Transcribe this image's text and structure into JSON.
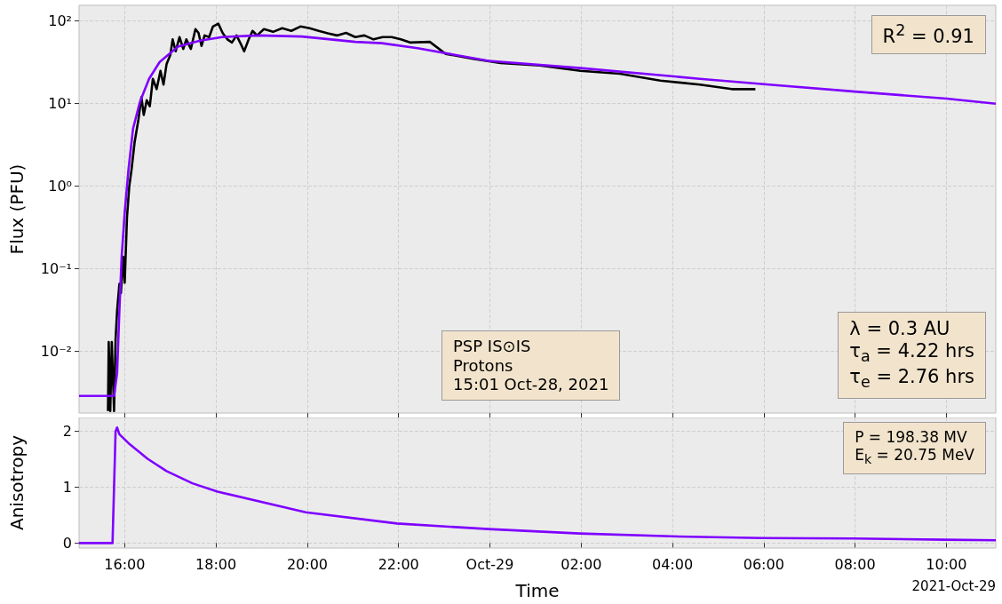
{
  "chart_data": [
    {
      "type": "line",
      "ylabel": "Flux (PFU)",
      "log": true,
      "grid": true,
      "tick_labels": "y",
      "xlim": [
        "2021-10-28T15:00",
        "2021-10-29T11:05"
      ],
      "xticks": [
        {
          "value": "2021-10-28T16:00",
          "label": null
        },
        {
          "value": "2021-10-28T18:00",
          "label": null
        },
        {
          "value": "2021-10-28T20:00",
          "label": null
        },
        {
          "value": "2021-10-28T22:00",
          "label": null
        },
        {
          "value": "2021-10-29T00:00",
          "label": null
        },
        {
          "value": "2021-10-29T02:00",
          "label": null
        },
        {
          "value": "2021-10-29T04:00",
          "label": null
        },
        {
          "value": "2021-10-29T06:00",
          "label": null
        },
        {
          "value": "2021-10-29T08:00",
          "label": null
        },
        {
          "value": "2021-10-29T10:00",
          "label": null
        }
      ],
      "ylim": [
        0.0018,
        155
      ],
      "yticks": [
        {
          "value": 0.01,
          "label": "10⁻²"
        },
        {
          "value": 0.1,
          "label": "10⁻¹"
        },
        {
          "value": 1,
          "label": "10⁰"
        },
        {
          "value": 10,
          "label": "10¹"
        },
        {
          "value": 100,
          "label": "10²"
        }
      ],
      "series": [
        {
          "color": "#000000",
          "x": [
            "2021-10-28T15:38",
            "2021-10-28T15:39",
            "2021-10-28T15:41",
            "2021-10-28T15:43",
            "2021-10-28T15:46",
            "2021-10-28T15:48",
            "2021-10-28T15:50",
            "2021-10-28T15:53",
            "2021-10-28T15:55",
            "2021-10-28T15:58",
            "2021-10-28T16:00",
            "2021-10-28T16:03",
            "2021-10-28T16:06",
            "2021-10-28T16:09",
            "2021-10-28T16:13",
            "2021-10-28T16:18",
            "2021-10-28T16:22",
            "2021-10-28T16:25",
            "2021-10-28T16:29",
            "2021-10-28T16:33",
            "2021-10-28T16:37",
            "2021-10-28T16:42",
            "2021-10-28T16:47",
            "2021-10-28T16:51",
            "2021-10-28T16:55",
            "2021-10-28T17:00",
            "2021-10-28T17:03",
            "2021-10-28T17:07",
            "2021-10-28T17:12",
            "2021-10-28T17:17",
            "2021-10-28T17:21",
            "2021-10-28T17:27",
            "2021-10-28T17:33",
            "2021-10-28T17:37",
            "2021-10-28T17:41",
            "2021-10-28T17:45",
            "2021-10-28T17:51",
            "2021-10-28T17:56",
            "2021-10-28T18:03",
            "2021-10-28T18:09",
            "2021-10-28T18:15",
            "2021-10-28T18:21",
            "2021-10-28T18:27",
            "2021-10-28T18:33",
            "2021-10-28T18:37",
            "2021-10-28T18:43",
            "2021-10-28T18:48",
            "2021-10-28T18:54",
            "2021-10-28T19:03",
            "2021-10-28T19:15",
            "2021-10-28T19:27",
            "2021-10-28T19:39",
            "2021-10-28T19:51",
            "2021-10-28T20:03",
            "2021-10-28T20:15",
            "2021-10-28T20:27",
            "2021-10-28T20:39",
            "2021-10-28T20:51",
            "2021-10-28T21:03",
            "2021-10-28T21:15",
            "2021-10-28T21:27",
            "2021-10-28T21:39",
            "2021-10-28T21:51",
            "2021-10-28T22:03",
            "2021-10-28T22:15",
            "2021-10-28T22:41",
            "2021-10-28T23:02",
            "2021-10-28T23:38",
            "2021-10-29T00:14",
            "2021-10-29T01:06",
            "2021-10-29T01:59",
            "2021-10-29T02:51",
            "2021-10-29T03:44",
            "2021-10-29T04:36",
            "2021-10-29T05:18",
            "2021-10-29T05:49"
          ],
          "values": [
            0.0019,
            0.013,
            0.0019,
            0.013,
            0.0019,
            0.014,
            0.031,
            0.066,
            0.051,
            0.14,
            0.068,
            0.42,
            1.0,
            1.6,
            3.4,
            6.4,
            12,
            7.3,
            11,
            9.3,
            20,
            15,
            25,
            17,
            30,
            39,
            60,
            43,
            64,
            46,
            60,
            46,
            80,
            72,
            50,
            67,
            64,
            86,
            93,
            71,
            60,
            55,
            67,
            52,
            43,
            60,
            76,
            67,
            80,
            74,
            82,
            76,
            86,
            82,
            76,
            71,
            67,
            72,
            64,
            67,
            60,
            64,
            64,
            60,
            55,
            56,
            40,
            35,
            31,
            29,
            25,
            23,
            19,
            17,
            15,
            15
          ]
        },
        {
          "color": "#7f00ff",
          "x": [
            "2021-10-28T15:00",
            "2021-10-28T15:46",
            "2021-10-28T15:50",
            "2021-10-28T15:53",
            "2021-10-28T15:56",
            "2021-10-28T16:00",
            "2021-10-28T16:05",
            "2021-10-28T16:11",
            "2021-10-28T16:20",
            "2021-10-28T16:32",
            "2021-10-28T16:46",
            "2021-10-28T17:10",
            "2021-10-28T17:39",
            "2021-10-28T18:08",
            "2021-10-28T18:55",
            "2021-10-28T19:53",
            "2021-10-28T21:03",
            "2021-10-28T21:38",
            "2021-10-28T22:25",
            "2021-10-28T23:58",
            "2021-10-29T01:59",
            "2021-10-29T04:36",
            "2021-10-29T06:07",
            "2021-10-29T08:00",
            "2021-10-29T10:00",
            "2021-10-29T11:05"
          ],
          "values": [
            0.0029,
            0.0029,
            0.0055,
            0.031,
            0.14,
            0.48,
            1.6,
            5.0,
            10.5,
            20,
            32,
            49,
            58,
            64,
            67,
            65,
            56,
            54,
            47,
            33,
            27,
            20,
            17,
            14,
            11.5,
            10
          ]
        }
      ],
      "annotations": [
        "R$^{2}$ = 0.91",
        "PSP IS⊙IS\nProtons\n15:01 Oct-28, 2021",
        "λ = 0.3 AU\nτ$_{a}$ = 4.22 hrs\nτ$_{e}$ = 2.76 hrs"
      ]
    },
    {
      "type": "line",
      "xlabel": "Time",
      "ylabel": "Anisotropy",
      "grid": true,
      "xlim": [
        "2021-10-28T15:00",
        "2021-10-29T11:05"
      ],
      "xticks": [
        {
          "value": "2021-10-28T16:00",
          "label": "16:00"
        },
        {
          "value": "2021-10-28T18:00",
          "label": "18:00"
        },
        {
          "value": "2021-10-28T20:00",
          "label": "20:00"
        },
        {
          "value": "2021-10-28T22:00",
          "label": "22:00"
        },
        {
          "value": "2021-10-29T00:00",
          "label": "Oct-29"
        },
        {
          "value": "2021-10-29T02:00",
          "label": "02:00"
        },
        {
          "value": "2021-10-29T04:00",
          "label": "04:00"
        },
        {
          "value": "2021-10-29T06:00",
          "label": "06:00"
        },
        {
          "value": "2021-10-29T08:00",
          "label": "08:00"
        },
        {
          "value": "2021-10-29T10:00",
          "label": "10:00"
        }
      ],
      "ylim": [
        -0.09,
        2.25
      ],
      "yticks": [
        0,
        1,
        2
      ],
      "series": [
        {
          "color": "#7f00ff",
          "x": [
            "2021-10-28T15:00",
            "2021-10-28T15:44",
            "2021-10-28T15:46",
            "2021-10-28T15:48",
            "2021-10-28T15:50",
            "2021-10-28T15:53",
            "2021-10-28T16:05",
            "2021-10-28T16:30",
            "2021-10-28T16:55",
            "2021-10-28T17:29",
            "2021-10-28T18:02",
            "2021-10-28T19:58",
            "2021-10-28T21:58",
            "2021-10-28T23:58",
            "2021-10-29T01:58",
            "2021-10-29T03:58",
            "2021-10-29T05:58",
            "2021-10-29T07:58",
            "2021-10-29T09:58",
            "2021-10-29T11:05"
          ],
          "values": [
            0,
            0,
            1.0,
            2.0,
            2.07,
            1.95,
            1.79,
            1.51,
            1.29,
            1.07,
            0.92,
            0.55,
            0.35,
            0.25,
            0.17,
            0.12,
            0.09,
            0.08,
            0.06,
            0.05
          ]
        }
      ],
      "annotations": [
        "P = 198.38 MV\nE$_{k}$ = 20.75 MeV",
        "2021-Oct-29"
      ]
    }
  ]
}
